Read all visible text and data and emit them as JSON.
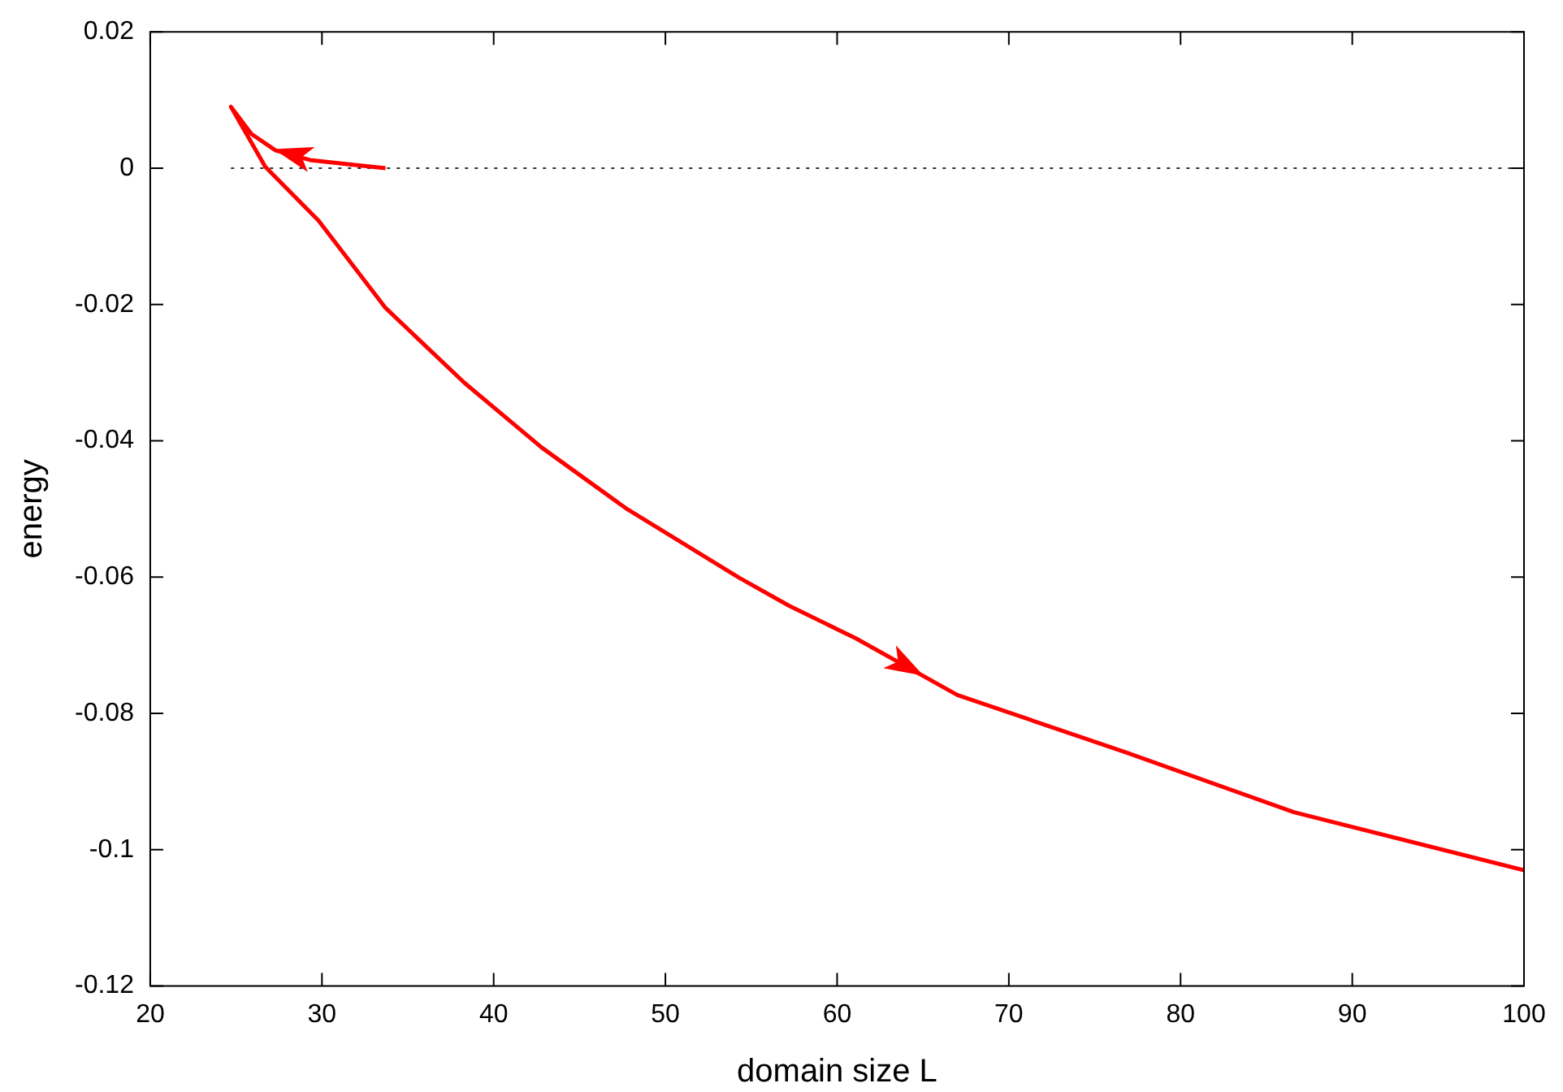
{
  "chart_data": {
    "type": "line",
    "xlabel": "domain size L",
    "ylabel": "energy",
    "xlim": [
      20,
      100
    ],
    "xticks": [
      20,
      30,
      40,
      50,
      60,
      70,
      80,
      90,
      100
    ],
    "ylim": [
      -0.12,
      0.02
    ],
    "yticks": [
      -0.12,
      -0.1,
      -0.08,
      -0.06,
      -0.04,
      -0.02,
      0,
      0.02
    ],
    "series": [
      {
        "color": "#ff0000",
        "x": [
          33.7,
          31.8,
          29.3,
          27.3,
          25.9,
          24.7,
          26.7,
          29.8,
          33.7,
          38.3,
          42.8,
          47.7,
          54.3,
          57.2,
          61.1,
          67.0,
          76.8,
          86.6,
          100
        ],
        "values": [
          0,
          0.0005,
          0.0012,
          0.0026,
          0.005,
          0.009,
          0.0002,
          -0.0077,
          -0.0205,
          -0.0315,
          -0.041,
          -0.0499,
          -0.0601,
          -0.0642,
          -0.069,
          -0.0773,
          -0.0857,
          -0.0945,
          -0.103
        ]
      }
    ],
    "ref_lines": [
      {
        "axis": "y",
        "value": 0,
        "color": "#333333",
        "line_style": "dotted"
      }
    ],
    "grid": false,
    "legend": false,
    "marker": "none",
    "line_style": "solid"
  }
}
